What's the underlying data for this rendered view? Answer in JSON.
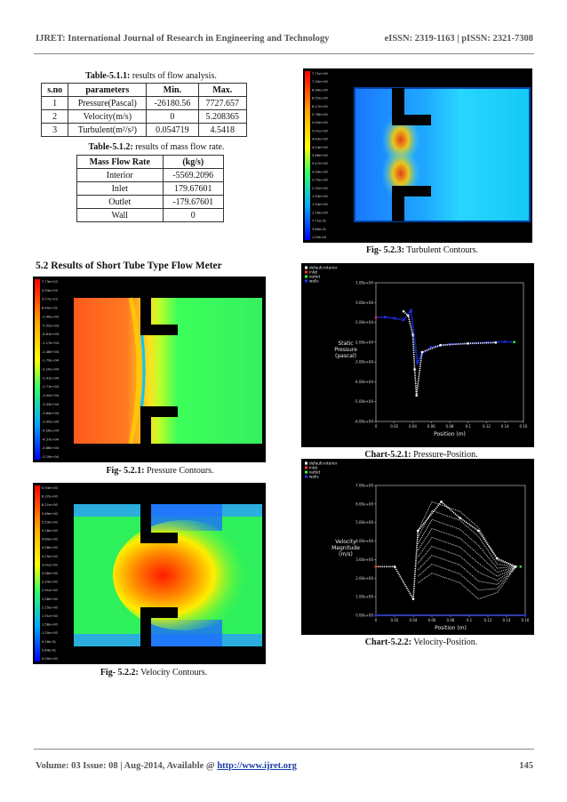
{
  "header": {
    "journal": "IJRET: International Journal of Research in Engineering and Technology",
    "issn": "eISSN: 2319-1163 | pISSN: 2321-7308"
  },
  "footer": {
    "volume_text": "Volume: 03 Issue: 08 | Aug-2014, Available @ ",
    "url": "http://www.ijret.org",
    "page_number": "145"
  },
  "table1": {
    "caption_label": "Table-5.1.1:",
    "caption_text": " results of flow analysis.",
    "headers": [
      "s.no",
      "parameters",
      "Min.",
      "Max."
    ],
    "rows": [
      [
        "1",
        "Pressure(Pascal)",
        "-26180.56",
        "7727.657"
      ],
      [
        "2",
        "Velocity(m/s)",
        "0",
        "5.208365"
      ],
      [
        "3",
        "Turbulent(m²/s²)",
        "0.054719",
        "4.5418"
      ]
    ]
  },
  "table2": {
    "caption_label": "Table-5.1.2:",
    "caption_text": " results of mass flow rate.",
    "headers": [
      "Mass Flow Rate",
      "(kg/s)"
    ],
    "rows": [
      [
        "Interior",
        "-5569.2096"
      ],
      [
        "Inlet",
        "179.67601"
      ],
      [
        "Outlet",
        "-179.67601"
      ],
      [
        "Wall",
        "0"
      ]
    ]
  },
  "section_title": "5.2 Results of Short Tube Type Flow Meter",
  "captions": {
    "fig523_label": "Fig- 5.2.3:",
    "fig523_text": " Turbulent Contours.",
    "fig521_label": "Fig- 5.2.1:",
    "fig521_text": " Pressure Contours.",
    "fig522_label": "Fig- 5.2.2:",
    "fig522_text": " Velocity Contours.",
    "chart521_label": "Chart-5.2.1:",
    "chart521_text": " Pressure-Position.",
    "chart522_label": "Chart-5.2.2:",
    "chart522_text": " Velocity-Position."
  },
  "legend_scales": {
    "turbulent": [
      "7.71e+00",
      "7.32e+00",
      "6.94e+00",
      "6.55e+00",
      "6.17e+00",
      "5.78e+00",
      "5.40e+00",
      "5.01e+00",
      "4.63e+00",
      "4.24e+00",
      "3.86e+00",
      "3.47e+00",
      "3.09e+00",
      "2.70e+00",
      "2.32e+00",
      "1.93e+00",
      "1.54e+00",
      "1.16e+00",
      "7.71e-01",
      "3.86e-01",
      "1.00e-04"
    ],
    "pressure": [
      "7.73e+03",
      "5.93e+03",
      "3.77e+03",
      "8.40e+02",
      "-2.40e+03",
      "-5.52e+03",
      "-8.61e+03",
      "-1.17e+04",
      "-1.48e+04",
      "-1.79e+04",
      "-2.10e+04",
      "-2.41e+04",
      "-2.71e+04",
      "-3.02e+04",
      "-3.33e+04",
      "-3.64e+04",
      "-3.95e+04",
      "-4.26e+04",
      "-4.57e+04",
      "-4.88e+04",
      "-5.19e+04"
    ],
    "velocity": [
      "5.93e+00",
      "6.37e+00",
      "6.21e+00",
      "5.89e+00",
      "5.53e+00",
      "5.18e+00",
      "4.89e+00",
      "4.58e+00",
      "4.25e+00",
      "3.91e+00",
      "3.58e+00",
      "3.24e+00",
      "2.91e+00",
      "2.58e+00",
      "2.25e+00",
      "1.91e+00",
      "1.58e+00",
      "1.25e+00",
      "9.18e-01",
      "5.84e-01",
      "0.00e+00"
    ]
  },
  "chart_data": [
    {
      "type": "scatter",
      "title": "",
      "xlabel": "Position (m)",
      "ylabel": "Static Pressure (pascal)",
      "xlim": [
        0,
        0.16
      ],
      "ylim": [
        -60000,
        20000
      ],
      "x_ticks": [
        "0",
        "0.02",
        "0.04",
        "0.06",
        "0.08",
        "0.1",
        "0.12",
        "0.14",
        "0.16"
      ],
      "y_ticks": [
        "1.00e+04",
        "0.00e+00",
        "-1.00e+04",
        "-2.00e+04",
        "-3.00e+04",
        "-4.00e+04",
        "-5.00e+04",
        "-6.00e+04"
      ],
      "legend": [
        "default-interior",
        "inlet",
        "outlet",
        "walls"
      ],
      "legend_position": "top-left",
      "series": [
        {
          "name": "walls",
          "color": "#2233ff",
          "points": [
            [
              0,
              0
            ],
            [
              0.01,
              200
            ],
            [
              0.02,
              -500
            ],
            [
              0.03,
              -1500
            ],
            [
              0.038,
              4000
            ],
            [
              0.045,
              -26000
            ],
            [
              0.05,
              -21000
            ],
            [
              0.06,
              -17000
            ],
            [
              0.08,
              -15500
            ],
            [
              0.1,
              -15000
            ],
            [
              0.12,
              -14500
            ],
            [
              0.14,
              -14000
            ],
            [
              0.15,
              -14200
            ]
          ]
        },
        {
          "name": "default-interior",
          "color": "#ffffff",
          "points": [
            [
              0.03,
              3500
            ],
            [
              0.035,
              1000
            ],
            [
              0.04,
              -10000
            ],
            [
              0.042,
              -30000
            ],
            [
              0.044,
              -45000
            ],
            [
              0.05,
              -20000
            ],
            [
              0.07,
              -16000
            ],
            [
              0.1,
              -15000
            ],
            [
              0.13,
              -14500
            ]
          ]
        },
        {
          "name": "inlet",
          "color": "#ff3333",
          "points": [
            [
              0,
              0
            ]
          ]
        },
        {
          "name": "outlet",
          "color": "#33ff33",
          "points": [
            [
              0.15,
              -14200
            ]
          ]
        }
      ]
    },
    {
      "type": "scatter",
      "title": "",
      "xlabel": "Position (m)",
      "ylabel": "Velocity Magnitude (m/s)",
      "xlim": [
        0,
        0.16
      ],
      "ylim": [
        0,
        8
      ],
      "x_ticks": [
        "0",
        "0.02",
        "0.04",
        "0.06",
        "0.08",
        "0.1",
        "0.12",
        "0.14",
        "0.16"
      ],
      "y_ticks": [
        "7.00e+00",
        "6.00e+00",
        "5.00e+00",
        "4.00e+00",
        "3.00e+00",
        "2.00e+00",
        "1.00e+00",
        "0.00e+00"
      ],
      "legend": [
        "default-interior",
        "inlet",
        "outlet",
        "walls"
      ],
      "legend_position": "top-left",
      "series": [
        {
          "name": "walls",
          "color": "#2233ff",
          "points": [
            [
              0,
              0
            ],
            [
              0.16,
              0
            ]
          ]
        },
        {
          "name": "default-interior",
          "color": "#ffffff",
          "points": [
            [
              0,
              3
            ],
            [
              0.02,
              3
            ],
            [
              0.04,
              1
            ],
            [
              0.045,
              5.2
            ],
            [
              0.07,
              7
            ],
            [
              0.09,
              6
            ],
            [
              0.11,
              5.2
            ],
            [
              0.13,
              3.5
            ],
            [
              0.15,
              3
            ]
          ]
        },
        {
          "name": "inlet",
          "color": "#ff3333",
          "points": [
            [
              0,
              3
            ]
          ]
        },
        {
          "name": "outlet",
          "color": "#33ff33",
          "points": [
            [
              0.155,
              3
            ]
          ]
        }
      ]
    }
  ]
}
